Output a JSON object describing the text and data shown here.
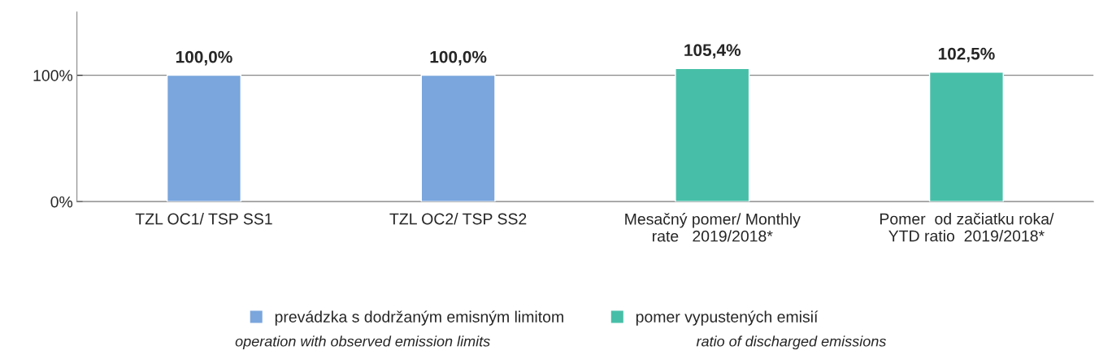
{
  "chart_data": {
    "type": "bar",
    "categories": [
      "TZL OC1/ TSP SS1",
      "TZL OC2/ TSP SS2",
      "Mesačný pomer/ Monthly\nrate   2019/2018*",
      "Pomer  od začiatku roka/\nYTD ratio  2019/2018*"
    ],
    "series": [
      {
        "name": "prevádzka s dodržaným emisným limitom",
        "color": "#7aa6dd",
        "values": [
          100.0,
          100.0,
          null,
          null
        ],
        "value_labels": [
          "100,0%",
          "100,0%",
          null,
          null
        ]
      },
      {
        "name": "pomer vypustených emisií",
        "color": "#47bfa8",
        "values": [
          null,
          null,
          105.4,
          102.5
        ],
        "value_labels": [
          null,
          null,
          "105,4%",
          "102,5%"
        ]
      }
    ],
    "stacked": true,
    "ylim": [
      0,
      150
    ],
    "yticks": [
      {
        "value": 0,
        "label": "0%"
      },
      {
        "value": 100,
        "label": "100%"
      }
    ],
    "grid": "y",
    "legend": "bottom",
    "annotations": [
      "operation with observed emission limits",
      "ratio of discharged emissions"
    ]
  }
}
